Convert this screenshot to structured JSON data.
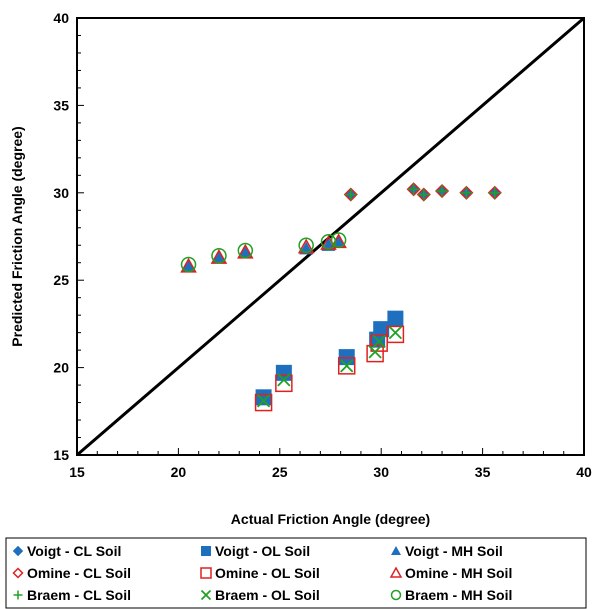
{
  "chart_data": {
    "type": "scatter",
    "xlabel": "Actual Friction Angle  (degree)",
    "ylabel": "Predicted Friction Angle (degree)",
    "xlim": [
      15,
      40
    ],
    "ylim": [
      15,
      40
    ],
    "xticks": [
      "15",
      "20",
      "25",
      "30",
      "35",
      "40"
    ],
    "yticks": [
      "15",
      "20",
      "25",
      "30",
      "35",
      "40"
    ],
    "grid": false,
    "legend_position": "bottom",
    "reference_line": {
      "from": [
        15,
        15
      ],
      "to": [
        40,
        40
      ]
    },
    "series": [
      {
        "name": "Voigt - CL Soil",
        "marker": "diamond-filled",
        "color": "#1F6FBF",
        "points": [
          [
            28.5,
            29.9
          ],
          [
            31.6,
            30.2
          ],
          [
            32.1,
            29.9
          ],
          [
            33.0,
            30.1
          ],
          [
            34.2,
            30.0
          ],
          [
            35.6,
            30.0
          ]
        ]
      },
      {
        "name": "Voigt - OL Soil",
        "marker": "square-filled",
        "color": "#1F6FBF",
        "points": [
          [
            24.2,
            18.3
          ],
          [
            25.2,
            19.7
          ],
          [
            28.3,
            20.6
          ],
          [
            29.8,
            21.6
          ],
          [
            30.0,
            22.2
          ],
          [
            30.7,
            22.8
          ]
        ]
      },
      {
        "name": "Voigt - MH Soil",
        "marker": "triangle-filled",
        "color": "#1F6FBF",
        "points": [
          [
            20.5,
            25.8
          ],
          [
            22.0,
            26.3
          ],
          [
            23.3,
            26.6
          ],
          [
            26.3,
            26.8
          ],
          [
            27.4,
            27.0
          ],
          [
            27.9,
            27.2
          ]
        ]
      },
      {
        "name": "Omine - CL Soil",
        "marker": "diamond-open",
        "color": "#E02020",
        "points": [
          [
            28.5,
            29.9
          ],
          [
            31.6,
            30.2
          ],
          [
            32.1,
            29.9
          ],
          [
            33.0,
            30.1
          ],
          [
            34.2,
            30.0
          ],
          [
            35.6,
            30.0
          ]
        ]
      },
      {
        "name": "Omine - OL Soil",
        "marker": "square-open",
        "color": "#E02020",
        "points": [
          [
            24.2,
            18.0
          ],
          [
            25.2,
            19.1
          ],
          [
            28.3,
            20.1
          ],
          [
            29.7,
            20.8
          ],
          [
            29.9,
            21.4
          ],
          [
            30.7,
            21.9
          ]
        ]
      },
      {
        "name": "Omine - MH Soil",
        "marker": "triangle-open",
        "color": "#E02020",
        "points": [
          [
            20.5,
            25.8
          ],
          [
            22.0,
            26.3
          ],
          [
            23.3,
            26.6
          ],
          [
            26.3,
            26.9
          ],
          [
            27.4,
            27.1
          ],
          [
            27.9,
            27.2
          ]
        ]
      },
      {
        "name": "Braem - CL Soil",
        "marker": "plus",
        "color": "#22A022",
        "points": [
          [
            28.5,
            29.9
          ],
          [
            31.6,
            30.2
          ],
          [
            32.1,
            29.9
          ],
          [
            33.0,
            30.1
          ],
          [
            34.2,
            30.0
          ],
          [
            35.6,
            30.0
          ]
        ]
      },
      {
        "name": "Braem - OL Soil",
        "marker": "cross",
        "color": "#22A022",
        "points": [
          [
            24.2,
            18.1
          ],
          [
            25.2,
            19.3
          ],
          [
            28.3,
            20.1
          ],
          [
            29.7,
            20.9
          ],
          [
            29.9,
            21.5
          ],
          [
            30.7,
            22.0
          ]
        ]
      },
      {
        "name": "Braem - MH Soil",
        "marker": "circle-open",
        "color": "#22A022",
        "points": [
          [
            20.5,
            25.9
          ],
          [
            22.0,
            26.4
          ],
          [
            23.3,
            26.7
          ],
          [
            26.3,
            27.0
          ],
          [
            27.4,
            27.2
          ],
          [
            27.9,
            27.3
          ]
        ]
      }
    ]
  }
}
